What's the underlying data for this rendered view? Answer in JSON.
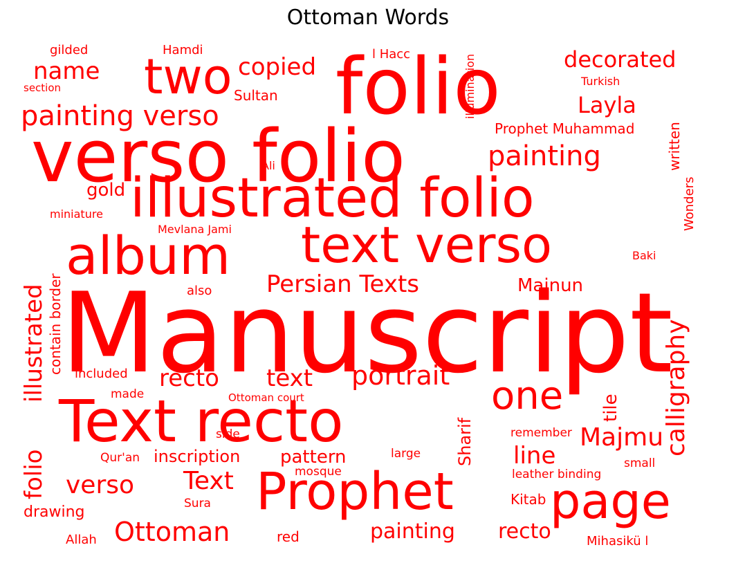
{
  "title": "Ottoman Words",
  "color": "#ff0000",
  "words": [
    "Manuscript",
    "folio",
    "verso folio",
    "illustrated folio",
    "Text recto",
    "text verso",
    "album",
    "Prophet",
    "page",
    "two",
    "one",
    "painting verso",
    "painting",
    "copied",
    "decorated",
    "Layla",
    "name",
    "Persian Texts",
    "Majnun",
    "Majmu",
    "portrait",
    "recto",
    "text",
    "line",
    "calligraphy",
    "illustrated",
    "folio",
    "Ottoman",
    "verso",
    "Text",
    "painting",
    "recto",
    "inscription",
    "pattern",
    "Kitab",
    "tile",
    "Sharif",
    "gold",
    "written",
    "Wonders",
    "Prophet Muhammad",
    "Sultan",
    "Hamdi",
    "gilded",
    "l Hacc",
    "Turkish",
    "Ali",
    "miniature",
    "Mevlana Jami",
    "contain border",
    "Baki",
    "also",
    "included",
    "made",
    "drawing",
    "Allah",
    "Qur'an",
    "mosque",
    "red",
    "Sura",
    "side",
    "remember",
    "leather binding",
    "small",
    "large",
    "Mihasikü l",
    "Ottoman court",
    "section",
    "illumination"
  ]
}
